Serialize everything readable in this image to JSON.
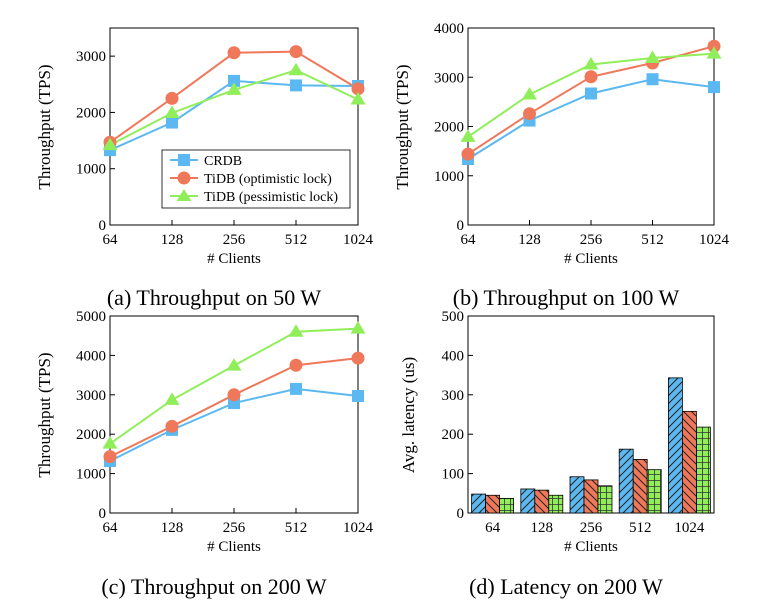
{
  "colors": {
    "crdb": "#5bb8f0",
    "tidb_opt": "#f0785a",
    "tidb_pes": "#90ee5a"
  },
  "legend": {
    "crdb": "CRDB",
    "tidb_opt": "TiDB (optimistic lock)",
    "tidb_pes": "TiDB (pessimistic lock)"
  },
  "chart_data": [
    {
      "type": "line",
      "caption": "(a) Throughput on 50 W",
      "xlabel": "# Clients",
      "ylabel": "Throughput (TPS)",
      "categories": [
        "64",
        "128",
        "256",
        "512",
        "1024"
      ],
      "ylim": [
        0,
        3500
      ],
      "yticks": [
        0,
        1000,
        2000,
        3000
      ],
      "legend_position": "center",
      "series": [
        {
          "name": "CRDB",
          "values": [
            1330,
            1820,
            2560,
            2480,
            2470
          ]
        },
        {
          "name": "TiDB (optimistic lock)",
          "values": [
            1470,
            2250,
            3060,
            3080,
            2420
          ]
        },
        {
          "name": "TiDB (pessimistic lock)",
          "values": [
            1420,
            1990,
            2400,
            2750,
            2230
          ]
        }
      ]
    },
    {
      "type": "line",
      "caption": "(b) Throughput on 100 W",
      "xlabel": "# Clients",
      "ylabel": "Throughput (TPS)",
      "categories": [
        "64",
        "128",
        "256",
        "512",
        "1024"
      ],
      "ylim": [
        0,
        4000
      ],
      "yticks": [
        0,
        1000,
        2000,
        3000,
        4000
      ],
      "series": [
        {
          "name": "CRDB",
          "values": [
            1340,
            2120,
            2670,
            2960,
            2800
          ]
        },
        {
          "name": "TiDB (optimistic lock)",
          "values": [
            1440,
            2260,
            3010,
            3290,
            3630
          ]
        },
        {
          "name": "TiDB (pessimistic lock)",
          "values": [
            1790,
            2650,
            3260,
            3390,
            3480
          ]
        }
      ]
    },
    {
      "type": "line",
      "caption": "(c) Throughput on 200 W",
      "xlabel": "# Clients",
      "ylabel": "Throughput (TPS)",
      "categories": [
        "64",
        "128",
        "256",
        "512",
        "1024"
      ],
      "ylim": [
        0,
        5000
      ],
      "yticks": [
        0,
        1000,
        2000,
        3000,
        4000,
        5000
      ],
      "series": [
        {
          "name": "CRDB",
          "values": [
            1320,
            2110,
            2790,
            3150,
            2970
          ]
        },
        {
          "name": "TiDB (optimistic lock)",
          "values": [
            1430,
            2200,
            3000,
            3750,
            3930
          ]
        },
        {
          "name": "TiDB (pessimistic lock)",
          "values": [
            1760,
            2870,
            3740,
            4600,
            4680
          ]
        }
      ]
    },
    {
      "type": "bar",
      "caption": "(d) Latency on 200 W",
      "xlabel": "# Clients",
      "ylabel": "Avg. latency (us)",
      "categories": [
        "64",
        "128",
        "256",
        "512",
        "1024"
      ],
      "ylim": [
        0,
        500
      ],
      "yticks": [
        0,
        100,
        200,
        300,
        400,
        500
      ],
      "series": [
        {
          "name": "CRDB",
          "values": [
            48,
            61,
            92,
            162,
            343
          ]
        },
        {
          "name": "TiDB (optimistic lock)",
          "values": [
            45,
            58,
            84,
            136,
            258
          ]
        },
        {
          "name": "TiDB (pessimistic lock)",
          "values": [
            37,
            45,
            69,
            110,
            218
          ]
        }
      ]
    }
  ]
}
